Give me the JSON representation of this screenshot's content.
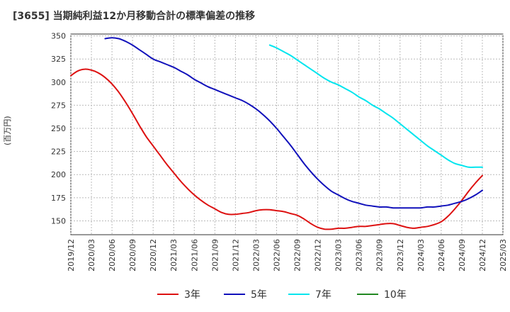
{
  "chart_data": {
    "type": "line",
    "title": "[3655]  当期純利益12か月移動合計の標準偏差の推移",
    "xlabel": "",
    "ylabel": "(百万円)",
    "ylim": [
      135,
      352
    ],
    "yticks": [
      150,
      175,
      200,
      225,
      250,
      275,
      300,
      325,
      350
    ],
    "xlim": [
      "2019-12",
      "2025-03"
    ],
    "xticks": [
      "2019/12",
      "2020/03",
      "2020/06",
      "2020/09",
      "2020/12",
      "2021/03",
      "2021/06",
      "2021/09",
      "2021/12",
      "2022/03",
      "2022/06",
      "2022/09",
      "2022/12",
      "2023/03",
      "2023/06",
      "2023/09",
      "2023/12",
      "2024/03",
      "2024/06",
      "2024/09",
      "2024/12",
      "2025/03"
    ],
    "grid": true,
    "legend": "bottom",
    "series": [
      {
        "name": "3年",
        "color": "#dd1111",
        "points": [
          [
            "2019-12",
            307
          ],
          [
            "2020-01",
            312
          ],
          [
            "2020-02",
            314
          ],
          [
            "2020-03",
            313
          ],
          [
            "2020-04",
            310
          ],
          [
            "2020-05",
            305
          ],
          [
            "2020-06",
            298
          ],
          [
            "2020-07",
            289
          ],
          [
            "2020-08",
            278
          ],
          [
            "2020-09",
            266
          ],
          [
            "2020-10",
            253
          ],
          [
            "2020-11",
            241
          ],
          [
            "2020-12",
            231
          ],
          [
            "2021-01",
            221
          ],
          [
            "2021-02",
            211
          ],
          [
            "2021-03",
            202
          ],
          [
            "2021-04",
            193
          ],
          [
            "2021-05",
            185
          ],
          [
            "2021-06",
            178
          ],
          [
            "2021-07",
            172
          ],
          [
            "2021-08",
            167
          ],
          [
            "2021-09",
            163
          ],
          [
            "2021-10",
            159
          ],
          [
            "2021-11",
            157
          ],
          [
            "2021-12",
            157
          ],
          [
            "2022-01",
            158
          ],
          [
            "2022-02",
            159
          ],
          [
            "2022-03",
            161
          ],
          [
            "2022-04",
            162
          ],
          [
            "2022-05",
            162
          ],
          [
            "2022-06",
            161
          ],
          [
            "2022-07",
            160
          ],
          [
            "2022-08",
            158
          ],
          [
            "2022-09",
            156
          ],
          [
            "2022-10",
            152
          ],
          [
            "2022-11",
            147
          ],
          [
            "2022-12",
            143
          ],
          [
            "2023-01",
            141
          ],
          [
            "2023-02",
            141
          ],
          [
            "2023-03",
            142
          ],
          [
            "2023-04",
            142
          ],
          [
            "2023-05",
            143
          ],
          [
            "2023-06",
            144
          ],
          [
            "2023-07",
            144
          ],
          [
            "2023-08",
            145
          ],
          [
            "2023-09",
            146
          ],
          [
            "2023-10",
            147
          ],
          [
            "2023-11",
            147
          ],
          [
            "2023-12",
            145
          ],
          [
            "2024-01",
            143
          ],
          [
            "2024-02",
            142
          ],
          [
            "2024-03",
            143
          ],
          [
            "2024-04",
            144
          ],
          [
            "2024-05",
            146
          ],
          [
            "2024-06",
            149
          ],
          [
            "2024-07",
            155
          ],
          [
            "2024-08",
            163
          ],
          [
            "2024-09",
            172
          ],
          [
            "2024-10",
            182
          ],
          [
            "2024-11",
            191
          ],
          [
            "2024-12",
            199
          ]
        ]
      },
      {
        "name": "5年",
        "color": "#1111bb",
        "points": [
          [
            "2020-05",
            347
          ],
          [
            "2020-06",
            348
          ],
          [
            "2020-07",
            347
          ],
          [
            "2020-08",
            344
          ],
          [
            "2020-09",
            340
          ],
          [
            "2020-10",
            335
          ],
          [
            "2020-11",
            330
          ],
          [
            "2020-12",
            325
          ],
          [
            "2021-01",
            322
          ],
          [
            "2021-02",
            319
          ],
          [
            "2021-03",
            316
          ],
          [
            "2021-04",
            312
          ],
          [
            "2021-05",
            308
          ],
          [
            "2021-06",
            303
          ],
          [
            "2021-07",
            299
          ],
          [
            "2021-08",
            295
          ],
          [
            "2021-09",
            292
          ],
          [
            "2021-10",
            289
          ],
          [
            "2021-11",
            286
          ],
          [
            "2021-12",
            283
          ],
          [
            "2022-01",
            280
          ],
          [
            "2022-02",
            276
          ],
          [
            "2022-03",
            271
          ],
          [
            "2022-04",
            265
          ],
          [
            "2022-05",
            258
          ],
          [
            "2022-06",
            250
          ],
          [
            "2022-07",
            241
          ],
          [
            "2022-08",
            232
          ],
          [
            "2022-09",
            222
          ],
          [
            "2022-10",
            212
          ],
          [
            "2022-11",
            203
          ],
          [
            "2022-12",
            195
          ],
          [
            "2023-01",
            188
          ],
          [
            "2023-02",
            182
          ],
          [
            "2023-03",
            178
          ],
          [
            "2023-04",
            174
          ],
          [
            "2023-05",
            171
          ],
          [
            "2023-06",
            169
          ],
          [
            "2023-07",
            167
          ],
          [
            "2023-08",
            166
          ],
          [
            "2023-09",
            165
          ],
          [
            "2023-10",
            165
          ],
          [
            "2023-11",
            164
          ],
          [
            "2023-12",
            164
          ],
          [
            "2024-01",
            164
          ],
          [
            "2024-02",
            164
          ],
          [
            "2024-03",
            164
          ],
          [
            "2024-04",
            165
          ],
          [
            "2024-05",
            165
          ],
          [
            "2024-06",
            166
          ],
          [
            "2024-07",
            167
          ],
          [
            "2024-08",
            169
          ],
          [
            "2024-09",
            171
          ],
          [
            "2024-10",
            174
          ],
          [
            "2024-11",
            178
          ],
          [
            "2024-12",
            183
          ]
        ]
      },
      {
        "name": "7年",
        "color": "#00e5ee",
        "points": [
          [
            "2022-05",
            340
          ],
          [
            "2022-06",
            337
          ],
          [
            "2022-07",
            333
          ],
          [
            "2022-08",
            329
          ],
          [
            "2022-09",
            324
          ],
          [
            "2022-10",
            319
          ],
          [
            "2022-11",
            314
          ],
          [
            "2022-12",
            309
          ],
          [
            "2023-01",
            304
          ],
          [
            "2023-02",
            300
          ],
          [
            "2023-03",
            297
          ],
          [
            "2023-04",
            293
          ],
          [
            "2023-05",
            289
          ],
          [
            "2023-06",
            284
          ],
          [
            "2023-07",
            280
          ],
          [
            "2023-08",
            275
          ],
          [
            "2023-09",
            271
          ],
          [
            "2023-10",
            266
          ],
          [
            "2023-11",
            261
          ],
          [
            "2023-12",
            255
          ],
          [
            "2024-01",
            249
          ],
          [
            "2024-02",
            243
          ],
          [
            "2024-03",
            237
          ],
          [
            "2024-04",
            231
          ],
          [
            "2024-05",
            226
          ],
          [
            "2024-06",
            221
          ],
          [
            "2024-07",
            216
          ],
          [
            "2024-08",
            212
          ],
          [
            "2024-09",
            210
          ],
          [
            "2024-10",
            208
          ],
          [
            "2024-11",
            208
          ],
          [
            "2024-12",
            208
          ]
        ]
      },
      {
        "name": "10年",
        "color": "#228822",
        "points": []
      }
    ]
  }
}
